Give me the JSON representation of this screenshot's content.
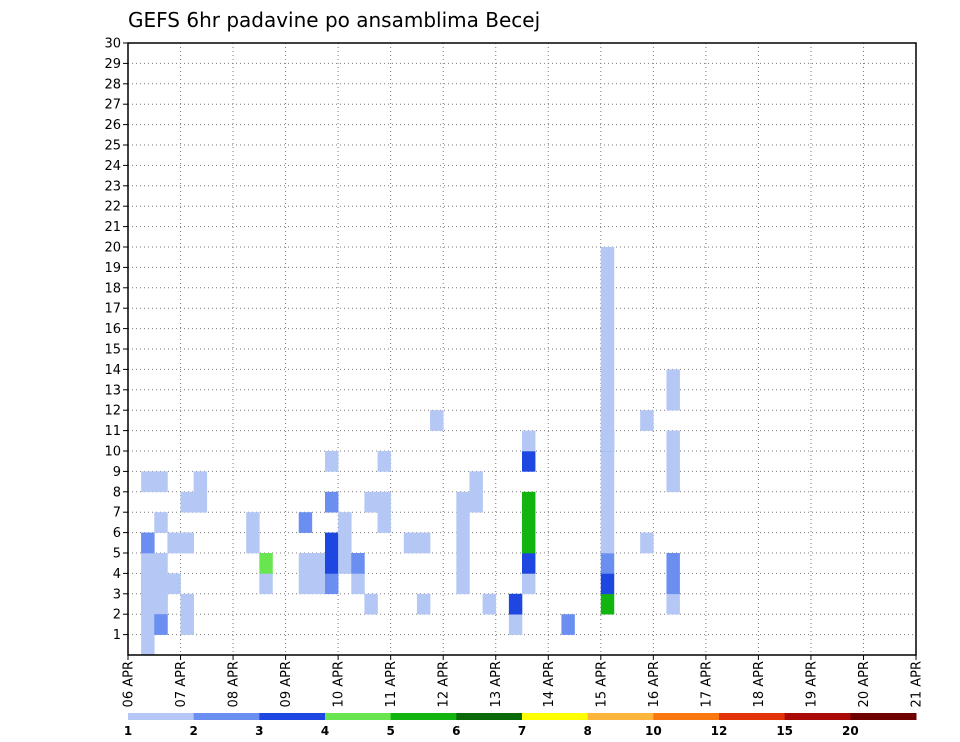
{
  "chart_data": {
    "type": "heatmap",
    "title": "GEFS 6hr padavine po ansamblima Becej",
    "x_tick_labels": [
      "06 APR",
      "07 APR",
      "08 APR",
      "09 APR",
      "10 APR",
      "11 APR",
      "12 APR",
      "13 APR",
      "14 APR",
      "15 APR",
      "16 APR",
      "17 APR",
      "18 APR",
      "19 APR",
      "20 APR",
      "21 APR"
    ],
    "y_tick_labels": [
      "1",
      "2",
      "3",
      "4",
      "5",
      "6",
      "7",
      "8",
      "9",
      "10",
      "11",
      "12",
      "13",
      "14",
      "15",
      "16",
      "17",
      "18",
      "19",
      "20",
      "21",
      "22",
      "23",
      "24",
      "25",
      "26",
      "27",
      "28",
      "29",
      "30"
    ],
    "xlim": [
      0,
      60
    ],
    "ylim": [
      0,
      30
    ],
    "grid": true,
    "legend": {
      "placement": "bottom",
      "labels": [
        "1",
        "2",
        "3",
        "4",
        "5",
        "6",
        "7",
        "8",
        "10",
        "12",
        "15",
        "20"
      ],
      "colors": [
        "#b4c7f5",
        "#6a8ff0",
        "#1e46e0",
        "#69e64f",
        "#12b40f",
        "#0a6a0a",
        "#ffff00",
        "#ffb43c",
        "#fa780f",
        "#e1320a",
        "#aa0a05",
        "#6e0000"
      ]
    },
    "cells": [
      [
        3,
        1,
        0
      ],
      [
        4,
        1,
        2
      ],
      [
        3,
        2,
        0
      ],
      [
        4,
        2,
        0
      ],
      [
        6,
        3,
        0
      ],
      [
        8,
        4,
        0
      ],
      [
        4,
        1,
        0
      ],
      [
        6,
        1,
        0
      ],
      [
        9,
        2,
        0
      ],
      [
        2,
        1,
        0
      ],
      [
        3,
        1,
        0
      ],
      [
        4,
        1,
        0
      ],
      [
        6,
        4,
        0
      ],
      [
        8,
        5,
        0
      ],
      [
        9,
        5,
        0
      ],
      [
        2,
        2,
        0
      ],
      [
        3,
        2,
        0
      ],
      [
        1,
        1,
        0
      ],
      [
        3,
        1,
        0
      ],
      [
        4,
        1,
        0
      ],
      [
        5,
        1,
        0
      ],
      [
        7,
        2,
        0
      ],
      [
        3,
        2,
        0
      ],
      [
        5,
        2,
        0
      ],
      [
        6,
        1,
        1
      ],
      [
        9,
        1,
        0
      ],
      [
        2,
        4,
        0
      ],
      [
        3,
        4,
        0
      ],
      [
        4,
        3,
        0
      ],
      [
        6,
        4,
        0
      ],
      [
        6,
        9,
        0
      ],
      [
        7,
        9,
        0
      ],
      [
        4,
        10,
        0
      ],
      [
        5,
        10,
        3
      ],
      [
        4,
        13,
        0
      ],
      [
        5,
        13,
        0
      ],
      [
        7,
        13,
        1
      ],
      [
        4,
        14,
        0
      ],
      [
        5,
        14,
        0
      ],
      [
        10,
        15,
        0
      ],
      [
        4,
        15,
        1
      ],
      [
        5,
        15,
        2
      ],
      [
        6,
        15,
        2
      ],
      [
        8,
        15,
        1
      ],
      [
        5,
        16,
        0
      ],
      [
        6,
        16,
        0
      ],
      [
        7,
        16,
        0
      ],
      [
        4,
        17,
        0
      ],
      [
        5,
        17,
        1
      ],
      [
        3,
        18,
        0
      ],
      [
        8,
        18,
        0
      ],
      [
        7,
        19,
        0
      ],
      [
        8,
        19,
        0
      ],
      [
        10,
        19,
        0
      ],
      [
        6,
        21,
        0
      ],
      [
        6,
        22,
        0
      ],
      [
        12,
        23,
        0
      ],
      [
        3,
        22,
        0
      ],
      [
        4,
        25,
        0
      ],
      [
        5,
        25,
        0
      ],
      [
        6,
        25,
        0
      ],
      [
        7,
        25,
        0
      ],
      [
        8,
        25,
        0
      ],
      [
        8,
        26,
        0
      ],
      [
        9,
        26,
        0
      ],
      [
        3,
        27,
        0
      ],
      [
        2,
        29,
        0
      ],
      [
        3,
        29,
        2
      ],
      [
        4,
        2,
        0
      ],
      [
        2,
        2,
        1
      ],
      [
        4,
        30,
        0
      ],
      [
        5,
        30,
        2
      ],
      [
        6,
        30,
        4
      ],
      [
        7,
        30,
        4
      ],
      [
        8,
        30,
        4
      ],
      [
        10,
        30,
        2
      ],
      [
        11,
        30,
        0
      ],
      [
        2,
        33,
        1
      ],
      [
        6,
        39,
        0
      ],
      [
        12,
        39,
        0
      ],
      [
        3,
        41,
        0
      ],
      [
        4,
        41,
        1
      ],
      [
        5,
        41,
        1
      ],
      [
        9,
        41,
        0
      ],
      [
        10,
        41,
        0
      ],
      [
        11,
        41,
        0
      ],
      [
        13,
        41,
        0
      ],
      [
        14,
        41,
        0
      ],
      [
        3,
        36,
        4
      ],
      [
        4,
        36,
        2
      ],
      [
        5,
        36,
        1
      ],
      [
        6,
        36,
        0
      ],
      [
        7,
        36,
        0
      ],
      [
        8,
        36,
        0
      ],
      [
        9,
        36,
        0
      ],
      [
        10,
        36,
        0
      ],
      [
        11,
        36,
        1
      ],
      [
        12,
        36,
        0
      ],
      [
        13,
        36,
        0
      ],
      [
        14,
        36,
        0
      ],
      [
        15,
        36,
        0
      ],
      [
        16,
        36,
        0
      ],
      [
        17,
        36,
        0
      ],
      [
        18,
        36,
        0
      ],
      [
        19,
        36,
        0
      ],
      [
        20,
        36,
        0
      ],
      [
        11,
        36,
        0
      ]
    ]
  }
}
